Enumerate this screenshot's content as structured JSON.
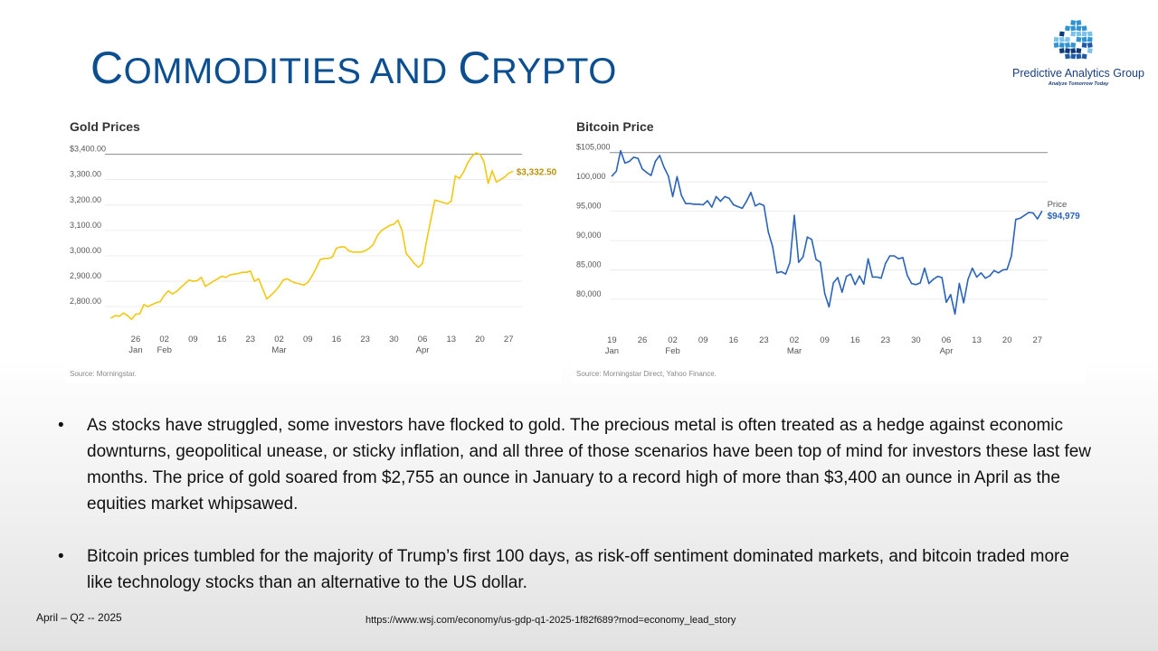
{
  "slide": {
    "title_initial_1": "C",
    "title_rest_1": "OMMODITIES AND ",
    "title_initial_2": "C",
    "title_rest_2": "RYPTO"
  },
  "logo": {
    "icon": "puzzle-globe-icon",
    "name": "Predictive Analytics Group",
    "tagline": "Analyze Tomorrow Today",
    "colors": [
      "#1c5aa8",
      "#2f93d1",
      "#7cc2ea",
      "#0d3a78"
    ]
  },
  "chart_data": [
    {
      "type": "line",
      "title": "Gold Prices",
      "source": "Source: Morningstar.",
      "color": "#f2c811",
      "ylim": [
        2740,
        3420
      ],
      "y_ticks": [
        2800,
        2900,
        3000,
        3100,
        3200,
        3300,
        3400
      ],
      "y_tick_labels": [
        "2,800.00",
        "2,900.00",
        "3,000.00",
        "3,100.00",
        "3,200.00",
        "3,300.00",
        "$3,400.00"
      ],
      "x_ticks": [
        {
          "day": 26,
          "label": "26",
          "sub": "Jan"
        },
        {
          "day": 33,
          "label": "02",
          "sub": "Feb"
        },
        {
          "day": 40,
          "label": "09",
          "sub": ""
        },
        {
          "day": 47,
          "label": "16",
          "sub": ""
        },
        {
          "day": 54,
          "label": "23",
          "sub": ""
        },
        {
          "day": 61,
          "label": "02",
          "sub": "Mar"
        },
        {
          "day": 68,
          "label": "09",
          "sub": ""
        },
        {
          "day": 75,
          "label": "16",
          "sub": ""
        },
        {
          "day": 82,
          "label": "23",
          "sub": ""
        },
        {
          "day": 89,
          "label": "30",
          "sub": ""
        },
        {
          "day": 96,
          "label": "06",
          "sub": "Apr"
        },
        {
          "day": 103,
          "label": "13",
          "sub": ""
        },
        {
          "day": 110,
          "label": "20",
          "sub": ""
        },
        {
          "day": 117,
          "label": "27",
          "sub": ""
        }
      ],
      "xlim": [
        18.5,
        118.5
      ],
      "last_label": "$3,332.50",
      "series": [
        {
          "x": [
            20,
            21,
            22,
            23,
            24,
            25,
            26,
            27,
            28,
            29,
            30,
            31,
            32,
            33,
            34,
            35,
            36,
            37,
            38,
            39,
            40,
            41,
            42,
            43,
            44,
            45,
            46,
            47,
            48,
            49,
            50,
            51,
            52,
            53,
            54,
            55,
            56,
            57,
            58,
            59,
            60,
            61,
            62,
            63,
            64,
            65,
            66,
            67,
            68,
            69,
            70,
            71,
            72,
            73,
            74,
            75,
            76,
            77,
            78,
            79,
            80,
            81,
            82,
            83,
            84,
            85,
            86,
            87,
            88,
            89,
            90,
            91,
            92,
            93,
            94,
            95,
            96,
            97,
            98,
            99,
            100,
            101,
            102,
            103,
            104,
            105,
            106,
            107,
            108,
            109,
            110,
            111,
            112,
            113,
            114,
            115,
            116,
            117,
            118
          ],
          "y": [
            2755,
            2765,
            2762,
            2775,
            2765,
            2750,
            2770,
            2772,
            2808,
            2800,
            2808,
            2815,
            2820,
            2845,
            2862,
            2850,
            2860,
            2875,
            2890,
            2905,
            2900,
            2902,
            2915,
            2880,
            2890,
            2900,
            2910,
            2920,
            2915,
            2925,
            2928,
            2930,
            2935,
            2935,
            2940,
            2900,
            2910,
            2870,
            2830,
            2845,
            2860,
            2880,
            2905,
            2910,
            2900,
            2893,
            2890,
            2885,
            2895,
            2920,
            2950,
            2985,
            2990,
            2990,
            2995,
            3030,
            3035,
            3035,
            3020,
            3015,
            3015,
            3015,
            3020,
            3030,
            3045,
            3080,
            3100,
            3110,
            3120,
            3125,
            3140,
            3100,
            3010,
            2990,
            2970,
            2955,
            2970,
            3060,
            3140,
            3220,
            3215,
            3210,
            3205,
            3215,
            3315,
            3305,
            3330,
            3365,
            3390,
            3405,
            3400,
            3370,
            3285,
            3335,
            3290,
            3300,
            3310,
            3325,
            3332.5
          ]
        }
      ]
    },
    {
      "type": "line",
      "title": "Bitcoin Price",
      "source": "Source: Morningstar Direct, Yahoo Finance.",
      "color": "#2a63b8",
      "ylim": [
        76000,
        106500
      ],
      "y_ticks": [
        80000,
        85000,
        90000,
        95000,
        100000,
        105000
      ],
      "y_tick_labels": [
        "80,000",
        "85,000",
        "90,000",
        "95,000",
        "100,000",
        "$105,000"
      ],
      "x_ticks": [
        {
          "day": 19,
          "label": "19",
          "sub": "Jan"
        },
        {
          "day": 26,
          "label": "26",
          "sub": ""
        },
        {
          "day": 33,
          "label": "02",
          "sub": "Feb"
        },
        {
          "day": 40,
          "label": "09",
          "sub": ""
        },
        {
          "day": 47,
          "label": "16",
          "sub": ""
        },
        {
          "day": 54,
          "label": "23",
          "sub": ""
        },
        {
          "day": 61,
          "label": "02",
          "sub": "Mar"
        },
        {
          "day": 68,
          "label": "09",
          "sub": ""
        },
        {
          "day": 75,
          "label": "16",
          "sub": ""
        },
        {
          "day": 82,
          "label": "23",
          "sub": ""
        },
        {
          "day": 89,
          "label": "30",
          "sub": ""
        },
        {
          "day": 96,
          "label": "06",
          "sub": "Apr"
        },
        {
          "day": 103,
          "label": "13",
          "sub": ""
        },
        {
          "day": 110,
          "label": "20",
          "sub": ""
        },
        {
          "day": 117,
          "label": "27",
          "sub": ""
        }
      ],
      "xlim": [
        18.5,
        118.5
      ],
      "last_label_1": "Price",
      "last_label_2": "$94,979",
      "series": [
        {
          "name": "Price",
          "x": [
            19,
            20,
            21,
            22,
            23,
            24,
            25,
            26,
            27,
            28,
            29,
            30,
            31,
            32,
            33,
            34,
            35,
            36,
            37,
            38,
            39,
            40,
            41,
            42,
            43,
            44,
            45,
            46,
            47,
            48,
            49,
            50,
            51,
            52,
            53,
            54,
            55,
            56,
            57,
            58,
            59,
            60,
            61,
            62,
            63,
            64,
            65,
            66,
            67,
            68,
            69,
            70,
            71,
            72,
            73,
            74,
            75,
            76,
            77,
            78,
            79,
            80,
            81,
            82,
            83,
            84,
            85,
            86,
            87,
            88,
            89,
            90,
            91,
            92,
            93,
            94,
            95,
            96,
            97,
            98,
            99,
            100,
            101,
            102,
            103,
            104,
            105,
            106,
            107,
            108,
            109,
            110,
            111,
            112,
            113,
            114,
            115,
            116,
            117,
            118
          ],
          "y": [
            101000,
            101800,
            105300,
            103200,
            103500,
            104200,
            104000,
            102200,
            101600,
            101100,
            103500,
            104500,
            102500,
            101000,
            97500,
            100900,
            97700,
            96300,
            96300,
            96200,
            96200,
            96100,
            96800,
            95700,
            97500,
            96700,
            97500,
            97200,
            96100,
            95800,
            95500,
            96700,
            98200,
            95900,
            96300,
            96000,
            91500,
            89000,
            84500,
            84700,
            84300,
            86300,
            94300,
            86300,
            87200,
            90600,
            90200,
            86800,
            86300,
            81000,
            78700,
            82800,
            83700,
            81200,
            83900,
            84300,
            82500,
            84000,
            82600,
            86900,
            83800,
            83800,
            83600,
            86100,
            87400,
            87400,
            86900,
            87100,
            84100,
            82700,
            82500,
            82800,
            85300,
            82700,
            83400,
            83900,
            83700,
            79500,
            80800,
            77500,
            82700,
            79400,
            83400,
            85300,
            83800,
            84500,
            83600,
            84000,
            84900,
            84500,
            85000,
            85100,
            87400,
            93600,
            93800,
            94300,
            94800,
            94700,
            93700,
            94979
          ]
        }
      ]
    }
  ],
  "bullets": [
    {
      "marker": "•",
      "text": "As stocks have struggled, some investors have flocked to gold. The precious metal is often treated as a hedge against economic downturns, geopolitical unease, or sticky inflation, and all three of those scenarios have been top of mind for investors these last few months. The price of gold soared from $2,755 an ounce in January to a record high of more than $3,400 an ounce in April as the equities market whipsawed."
    },
    {
      "marker": "•",
      "text": "Bitcoin prices tumbled for the majority of Trump’s first 100 days, as risk-off sentiment dominated markets, and bitcoin traded more like technology stocks than an alternative to the US dollar."
    }
  ],
  "footer": {
    "date": "April – Q2 -- 2025",
    "url": "https://www.wsj.com/economy/us-gdp-q1-2025-1f82f689?mod=economy_lead_story"
  }
}
